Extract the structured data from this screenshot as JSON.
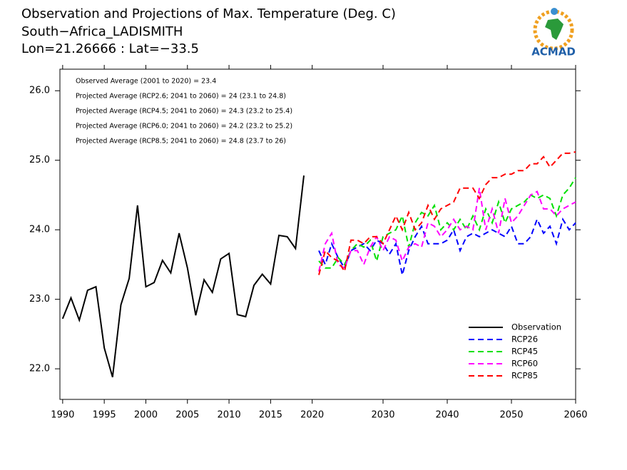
{
  "chart_data": [
    {
      "type": "line",
      "title": "Observation and Projections of Max. Temperature (Deg. C)",
      "subtitle": [
        "South−Africa_LADISMITH",
        "Lon=21.26666 : Lat=−33.5"
      ],
      "x": [
        1990,
        1991,
        1992,
        1993,
        1994,
        1995,
        1996,
        1997,
        1998,
        1999,
        2000,
        2001,
        2002,
        2003,
        2004,
        2005,
        2006,
        2007,
        2008,
        2009,
        2010,
        2011,
        2012,
        2013,
        2014,
        2015,
        2016,
        2017,
        2018,
        2019
      ],
      "series": [
        {
          "name": "Observation",
          "color": "#000000",
          "linestyle": "solid",
          "values": [
            22.72,
            23.02,
            22.7,
            23.13,
            23.18,
            22.3,
            21.88,
            22.92,
            23.3,
            24.35,
            23.18,
            23.24,
            23.56,
            23.38,
            23.95,
            23.45,
            22.77,
            23.28,
            23.1,
            23.58,
            23.66,
            22.78,
            22.75,
            23.2,
            23.36,
            23.22,
            23.92,
            23.9,
            23.73,
            24.78
          ]
        }
      ],
      "xlim": [
        1989.67,
        2020.8
      ],
      "xticks": [
        1990,
        1995,
        2000,
        2005,
        2010,
        2015,
        2020
      ],
      "ylim": [
        21.56,
        26.31
      ],
      "yticks": [
        {
          "value": 22,
          "label": "22.0"
        },
        {
          "value": 23,
          "label": "23.0"
        },
        {
          "value": 24,
          "label": "24.0"
        },
        {
          "value": 25,
          "label": "25.0"
        },
        {
          "value": 26,
          "label": "26.0"
        }
      ]
    },
    {
      "type": "line",
      "annotations": [
        "Observed Average (2001 to 2020) = 23.4",
        "Projected Average (RCP2.6; 2041 to 2060) = 24 (23.1 to 24.8)",
        "Projected Average (RCP4.5; 2041 to 2060) = 24.3 (23.2 to 25.4)",
        "Projected Average (RCP6.0; 2041 to 2060) = 24.2 (23.2 to 25.2)",
        "Projected Average (RCP8.5; 2041 to 2060) = 24.8 (23.7 to 26)"
      ],
      "x": [
        2020,
        2021,
        2022,
        2023,
        2024,
        2025,
        2026,
        2027,
        2028,
        2029,
        2030,
        2031,
        2032,
        2033,
        2034,
        2035,
        2036,
        2037,
        2038,
        2039,
        2040,
        2041,
        2042,
        2043,
        2044,
        2045,
        2046,
        2047,
        2048,
        2049,
        2050,
        2051,
        2052,
        2053,
        2054,
        2055,
        2056,
        2057,
        2058,
        2059,
        2060
      ],
      "series": [
        {
          "name": "RCP26",
          "color": "#0000ff",
          "linestyle": "dashed",
          "values": [
            23.7,
            23.5,
            23.8,
            23.6,
            23.45,
            23.7,
            23.75,
            23.8,
            23.7,
            23.85,
            23.8,
            23.65,
            23.8,
            23.35,
            23.7,
            23.9,
            24.05,
            23.8,
            23.8,
            23.8,
            23.85,
            24.0,
            23.7,
            23.9,
            23.95,
            23.9,
            23.95,
            24.0,
            23.95,
            23.9,
            24.05,
            23.8,
            23.8,
            23.9,
            24.15,
            23.95,
            24.05,
            23.8,
            24.15,
            24.0,
            24.1
          ]
        },
        {
          "name": "RCP45",
          "color": "#00e000",
          "linestyle": "dashed",
          "values": [
            23.55,
            23.45,
            23.45,
            23.6,
            23.5,
            23.7,
            23.8,
            23.75,
            23.85,
            23.55,
            23.9,
            23.95,
            24.0,
            24.2,
            23.75,
            24.1,
            24.25,
            24.2,
            24.35,
            24.0,
            24.1,
            24.0,
            24.15,
            24.0,
            24.2,
            24.0,
            24.3,
            24.1,
            24.4,
            24.1,
            24.3,
            24.35,
            24.4,
            24.5,
            24.45,
            24.5,
            24.45,
            24.2,
            24.5,
            24.6,
            24.75
          ]
        },
        {
          "name": "RCP60",
          "color": "#ff00ff",
          "linestyle": "dashed",
          "values": [
            23.4,
            23.8,
            23.95,
            23.5,
            23.45,
            23.7,
            23.7,
            23.5,
            23.75,
            23.9,
            23.7,
            23.9,
            23.85,
            23.55,
            23.75,
            23.8,
            23.75,
            24.1,
            24.05,
            23.9,
            24.0,
            24.15,
            24.0,
            24.05,
            24.0,
            24.6,
            24.0,
            24.3,
            23.95,
            24.45,
            24.1,
            24.2,
            24.35,
            24.5,
            24.55,
            24.3,
            24.3,
            24.2,
            24.3,
            24.35,
            24.4
          ]
        },
        {
          "name": "RCP85",
          "color": "#ff0000",
          "linestyle": "dashed",
          "values": [
            23.35,
            23.7,
            23.6,
            23.55,
            23.4,
            23.85,
            23.85,
            23.8,
            23.9,
            23.9,
            23.8,
            24.0,
            24.2,
            24.0,
            24.25,
            24.0,
            24.1,
            24.35,
            24.15,
            24.3,
            24.35,
            24.4,
            24.6,
            24.6,
            24.6,
            24.45,
            24.65,
            24.75,
            24.75,
            24.8,
            24.8,
            24.85,
            24.85,
            24.95,
            24.95,
            25.05,
            24.9,
            25.0,
            25.1,
            25.1,
            25.12
          ]
        }
      ],
      "xlim": [
        2020,
        2060
      ],
      "xticks": [
        2030,
        2040,
        2050,
        2060
      ],
      "ylim": [
        21.56,
        26.31
      ],
      "legend": "lower right"
    }
  ],
  "logo": "ACMAD"
}
